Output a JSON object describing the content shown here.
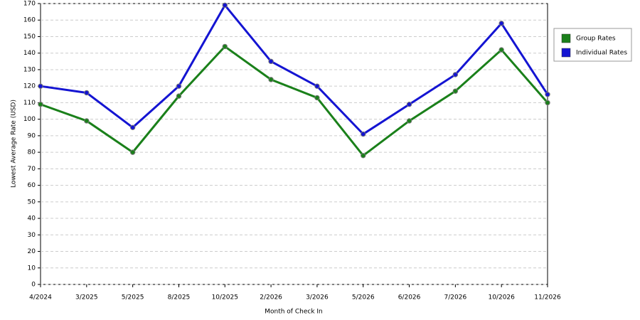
{
  "chart_data": {
    "type": "line",
    "x_label": "Month of Check In",
    "y_label": "Lowest Average Rate (USD)",
    "categories": [
      "4/2024",
      "3/2025",
      "5/2025",
      "8/2025",
      "10/2025",
      "2/2026",
      "3/2026",
      "5/2026",
      "6/2026",
      "7/2026",
      "10/2026",
      "11/2026"
    ],
    "series": [
      {
        "name": "Group Rates",
        "color": "#1a801a",
        "values": [
          109,
          99,
          80,
          114,
          144,
          124,
          113,
          78,
          99,
          117,
          142,
          110
        ]
      },
      {
        "name": "Individual Rates",
        "color": "#1414d2",
        "values": [
          120,
          116,
          95,
          120,
          169,
          135,
          120,
          91,
          109,
          127,
          158,
          115
        ]
      }
    ],
    "ylim": [
      0,
      170
    ],
    "yticks": [
      0,
      10,
      20,
      30,
      40,
      50,
      60,
      70,
      80,
      90,
      100,
      110,
      120,
      130,
      140,
      150,
      160,
      170
    ],
    "grid": true,
    "legend": "right"
  }
}
